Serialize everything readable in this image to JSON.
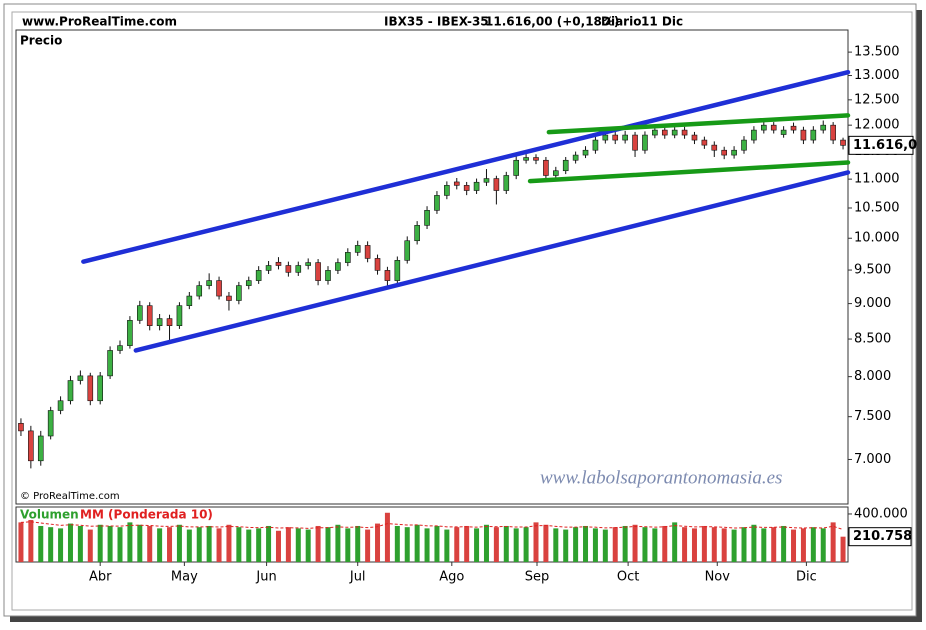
{
  "header": {
    "site": "www.ProRealTime.com",
    "instrument": "IBX35 - IBEX-35",
    "last": "11.616,00 (+0,18%)",
    "period": "Diario",
    "date": "11 Dic"
  },
  "chart_data": [
    {
      "type": "candlestick",
      "title": "Precio",
      "log_scale": true,
      "credit": "© ProRealTime.com",
      "watermark": "www.labolsaporantonomasia.es",
      "up_color": "#3cb043",
      "down_color": "#d9423f",
      "xlim": [
        0,
        84
      ],
      "xticks": [
        {
          "value": 8.5,
          "label": "Abr"
        },
        {
          "value": 17.0,
          "label": "May"
        },
        {
          "value": 25.3,
          "label": "Jun"
        },
        {
          "value": 34.5,
          "label": "Jul"
        },
        {
          "value": 44.0,
          "label": "Ago"
        },
        {
          "value": 52.6,
          "label": "Sep"
        },
        {
          "value": 61.8,
          "label": "Oct"
        },
        {
          "value": 70.8,
          "label": "Nov"
        },
        {
          "value": 79.8,
          "label": "Dic"
        }
      ],
      "ylim": [
        6515,
        13990
      ],
      "yticks": [
        {
          "value": 7000,
          "label": "7.000"
        },
        {
          "value": 7500,
          "label": "7.500"
        },
        {
          "value": 8000,
          "label": "8.000"
        },
        {
          "value": 8500,
          "label": "8.500"
        },
        {
          "value": 9000,
          "label": "9.000"
        },
        {
          "value": 9500,
          "label": "9.500"
        },
        {
          "value": 10000,
          "label": "10.000"
        },
        {
          "value": 10500,
          "label": "10.500"
        },
        {
          "value": 11000,
          "label": "11.000"
        },
        {
          "value": 11500,
          "label": "11.500"
        },
        {
          "value": 12000,
          "label": "12.000"
        },
        {
          "value": 12500,
          "label": "12.500"
        },
        {
          "value": 13000,
          "label": "13.000"
        },
        {
          "value": 13500,
          "label": "13.500"
        }
      ],
      "last_value": {
        "value": 11616,
        "label": "11.616,0"
      },
      "open": [
        7420,
        7330,
        6985,
        7270,
        7575,
        7695,
        7950,
        8010,
        7695,
        8010,
        8345,
        8410,
        8760,
        8970,
        8685,
        8785,
        8685,
        8970,
        9110,
        9265,
        9340,
        9110,
        9045,
        9265,
        9340,
        9495,
        9620,
        9570,
        9465,
        9570,
        9615,
        9340,
        9495,
        9615,
        9775,
        9885,
        9680,
        9495,
        9340,
        9650,
        9960,
        10210,
        10460,
        10715,
        10950,
        10890,
        10800,
        10945,
        11010,
        10800,
        11065,
        11340,
        11390,
        11340,
        11065,
        11150,
        11340,
        11435,
        11525,
        11715,
        11810,
        11715,
        11810,
        11525,
        11810,
        11905,
        11810,
        11905,
        11810,
        11715,
        11620,
        11525,
        11435,
        11525,
        11715,
        11905,
        12000,
        11820,
        11980,
        11905,
        11715,
        11905,
        12000,
        11715
      ],
      "high": [
        7480,
        7390,
        7330,
        7620,
        7750,
        8010,
        8080,
        8050,
        8060,
        8400,
        8480,
        8820,
        9040,
        9020,
        8850,
        8840,
        9020,
        9170,
        9330,
        9450,
        9400,
        9170,
        9320,
        9400,
        9560,
        9640,
        9700,
        9630,
        9630,
        9680,
        9670,
        9560,
        9680,
        9840,
        9960,
        9950,
        9740,
        9550,
        9710,
        10030,
        10280,
        10530,
        10790,
        10960,
        11020,
        10950,
        11010,
        11180,
        11060,
        11130,
        11410,
        11460,
        11450,
        11400,
        11220,
        11400,
        11500,
        11600,
        11790,
        11890,
        11880,
        11890,
        11870,
        11880,
        11980,
        11970,
        11980,
        11970,
        11870,
        11780,
        11690,
        11590,
        11600,
        11790,
        11980,
        12080,
        12060,
        11980,
        12050,
        11970,
        11980,
        12090,
        12060,
        11760
      ],
      "low": [
        7270,
        6900,
        6930,
        7230,
        7530,
        7650,
        7900,
        7640,
        7650,
        7970,
        8300,
        8370,
        8710,
        8620,
        8620,
        8480,
        8640,
        8920,
        9060,
        9210,
        9060,
        8900,
        8990,
        9210,
        9290,
        9440,
        9510,
        9400,
        9410,
        9510,
        9270,
        9280,
        9440,
        9560,
        9720,
        9620,
        9430,
        9260,
        9290,
        9600,
        9900,
        10150,
        10400,
        10650,
        10820,
        10720,
        10740,
        10880,
        10560,
        10740,
        11000,
        11280,
        11270,
        10950,
        11000,
        11090,
        11280,
        11380,
        11460,
        11650,
        11640,
        11650,
        11400,
        11460,
        11750,
        11740,
        11750,
        11740,
        11640,
        11550,
        11400,
        11360,
        11370,
        11460,
        11650,
        11840,
        11840,
        11760,
        11840,
        11640,
        11650,
        11840,
        11640,
        11540
      ],
      "close": [
        7330,
        6985,
        7270,
        7575,
        7695,
        7950,
        8010,
        7695,
        8010,
        8345,
        8410,
        8760,
        8970,
        8685,
        8785,
        8685,
        8970,
        9110,
        9265,
        9340,
        9110,
        9045,
        9265,
        9340,
        9495,
        9570,
        9570,
        9465,
        9570,
        9615,
        9340,
        9495,
        9615,
        9775,
        9885,
        9680,
        9495,
        9340,
        9650,
        9960,
        10210,
        10460,
        10715,
        10890,
        10890,
        10800,
        10945,
        11010,
        10800,
        11065,
        11340,
        11390,
        11340,
        11065,
        11150,
        11340,
        11435,
        11525,
        11715,
        11810,
        11715,
        11810,
        11525,
        11810,
        11905,
        11810,
        11905,
        11810,
        11715,
        11620,
        11525,
        11435,
        11525,
        11715,
        11905,
        12000,
        11905,
        11905,
        11905,
        11715,
        11905,
        12000,
        11715,
        11616
      ],
      "trendlines": [
        {
          "color": "#1f2fd6",
          "start": [
            6.8,
            9630
          ],
          "end": [
            84,
            13070
          ]
        },
        {
          "color": "#1f2fd6",
          "start": [
            12.1,
            8345
          ],
          "end": [
            84,
            11120
          ]
        },
        {
          "color": "#179a17",
          "start": [
            53.8,
            11865
          ],
          "end": [
            84,
            12190
          ]
        },
        {
          "color": "#179a17",
          "start": [
            51.9,
            10965
          ],
          "end": [
            84,
            11300
          ]
        }
      ]
    },
    {
      "type": "bar",
      "ylim": [
        0,
        458000
      ],
      "yticks": [
        {
          "value": 400000,
          "label": "400.000"
        }
      ],
      "last_value": {
        "value": 210758,
        "label": "210.758"
      },
      "series": [
        {
          "name": "Volumen",
          "color": "#2ea02e",
          "values": [
            330000,
            350000,
            300000,
            290000,
            280000,
            320000,
            300000,
            270000,
            310000,
            300000,
            290000,
            330000,
            310000,
            300000,
            280000,
            290000,
            310000,
            270000,
            290000,
            300000,
            280000,
            310000,
            290000,
            270000,
            280000,
            300000,
            260000,
            290000,
            280000,
            270000,
            300000,
            290000,
            310000,
            280000,
            300000,
            270000,
            320000,
            410000,
            300000,
            290000,
            310000,
            280000,
            300000,
            270000,
            290000,
            300000,
            280000,
            310000,
            290000,
            300000,
            280000,
            290000,
            330000,
            310000,
            280000,
            270000,
            290000,
            300000,
            280000,
            270000,
            290000,
            300000,
            310000,
            290000,
            280000,
            300000,
            330000,
            290000,
            280000,
            300000,
            290000,
            280000,
            270000,
            290000,
            310000,
            280000,
            290000,
            300000,
            270000,
            280000,
            290000,
            280000,
            330000,
            210758
          ]
        },
        {
          "name": "MM (Ponderada 10)",
          "color": "#e02020",
          "values": [
            330000,
            335000,
            325000,
            315000,
            305000,
            310000,
            306000,
            298000,
            300000,
            300000,
            298000,
            305000,
            306000,
            304000,
            298000,
            296000,
            300000,
            292000,
            292000,
            294000,
            291000,
            296000,
            294000,
            288000,
            286000,
            290000,
            283000,
            285000,
            284000,
            280000,
            285000,
            286000,
            292000,
            289000,
            292000,
            286000,
            294000,
            320000,
            314000,
            308000,
            309000,
            301000,
            301000,
            293000,
            292000,
            294000,
            290000,
            296000,
            294000,
            296000,
            291000,
            291000,
            302000,
            304000,
            297000,
            290000,
            290000,
            293000,
            290000,
            284000,
            286000,
            290000,
            296000,
            294000,
            290000,
            293000,
            303000,
            298000,
            292000,
            294000,
            293000,
            289000,
            283000,
            285000,
            292000,
            288000,
            289000,
            292000,
            285000,
            283000,
            285000,
            283000,
            298000,
            270000
          ]
        }
      ]
    }
  ]
}
